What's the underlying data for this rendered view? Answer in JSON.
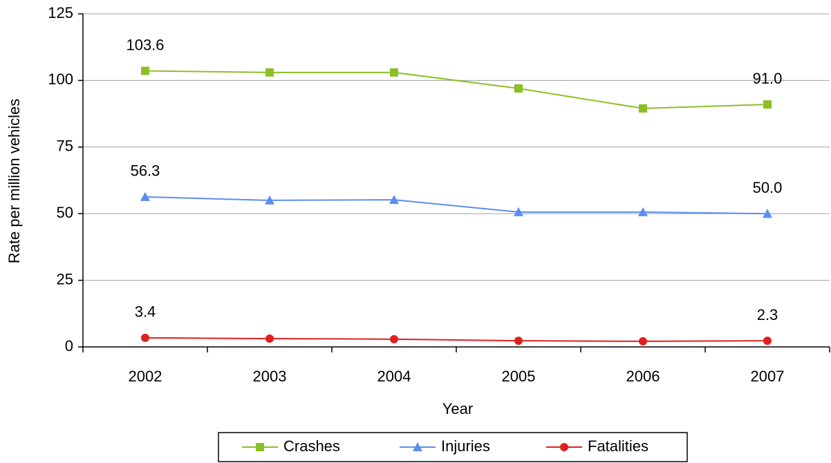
{
  "chart_data": {
    "type": "line",
    "x_label": "Year",
    "y_label": "Rate per million vehicles",
    "categories": [
      "2002",
      "2003",
      "2004",
      "2005",
      "2006",
      "2007"
    ],
    "series": [
      {
        "name": "Crashes",
        "color": "#8cbf26",
        "marker": "square",
        "values": [
          103.6,
          103.0,
          103.0,
          97.0,
          89.5,
          91.0
        ],
        "value_labels": [
          "103.6",
          null,
          null,
          null,
          null,
          "91.0"
        ]
      },
      {
        "name": "Injuries",
        "color": "#5b8ef0",
        "marker": "triangle",
        "values": [
          56.3,
          55.0,
          55.2,
          50.6,
          50.6,
          50.0
        ],
        "value_labels": [
          "56.3",
          null,
          null,
          null,
          null,
          "50.0"
        ]
      },
      {
        "name": "Fatalities",
        "color": "#e02020",
        "marker": "circle",
        "values": [
          3.4,
          3.1,
          2.9,
          2.3,
          2.1,
          2.3
        ],
        "value_labels": [
          "3.4",
          null,
          null,
          null,
          null,
          "2.3"
        ]
      }
    ],
    "ylim": [
      0,
      125
    ],
    "yticks": [
      0,
      25,
      50,
      75,
      100,
      125
    ],
    "grid": true,
    "legend": "bottom"
  }
}
